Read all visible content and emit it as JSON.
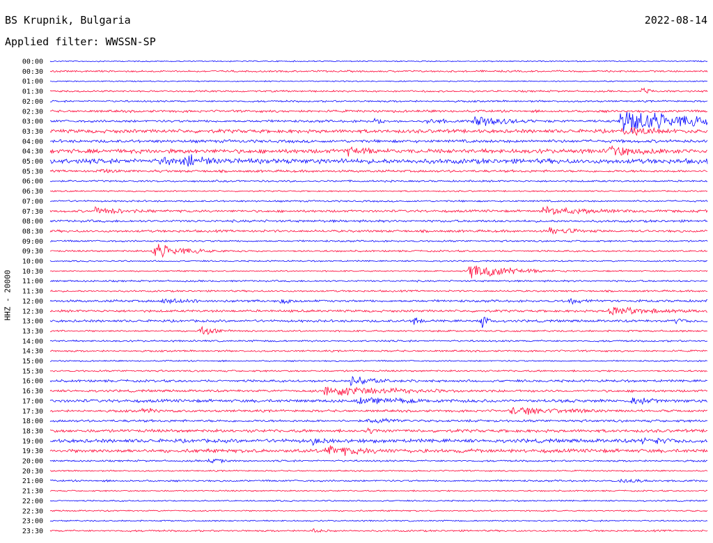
{
  "header": {
    "station": "BS Krupnik, Bulgaria",
    "date": "2022-08-14",
    "filter": "Applied filter: WWSSN-SP"
  },
  "chart_data": {
    "type": "line",
    "title": "BS Krupnik, Bulgaria",
    "ylabel": "HHZ - 20000",
    "colors": {
      "even_row": "#0000ff",
      "odd_row": "#ff0033"
    },
    "rows": [
      "00:00",
      "00:30",
      "01:00",
      "01:30",
      "02:00",
      "02:30",
      "03:00",
      "03:30",
      "04:00",
      "04:30",
      "05:00",
      "05:30",
      "06:00",
      "06:30",
      "07:00",
      "07:30",
      "08:00",
      "08:30",
      "09:00",
      "09:30",
      "10:00",
      "10:30",
      "11:00",
      "11:30",
      "12:00",
      "12:30",
      "13:00",
      "13:30",
      "14:00",
      "14:30",
      "15:00",
      "15:30",
      "16:00",
      "16:30",
      "17:00",
      "17:30",
      "18:00",
      "18:30",
      "19:00",
      "19:30",
      "20:00",
      "20:30",
      "21:00",
      "21:30",
      "22:00",
      "22:30",
      "23:00",
      "23:30"
    ],
    "row_minutes": 30,
    "noise": [
      1,
      1.5,
      1,
      1.5,
      1.5,
      2,
      2,
      3,
      2.5,
      3.5,
      4,
      2,
      1.5,
      1.2,
      1.5,
      2,
      2,
      2,
      1.5,
      1.5,
      1.2,
      1.2,
      1.5,
      1.5,
      2,
      2,
      2,
      1.5,
      1.5,
      1.5,
      1.2,
      1.5,
      2,
      2,
      2.5,
      2,
      2,
      2.5,
      3,
      3,
      1.5,
      1.2,
      1.5,
      1.2,
      1.2,
      1.2,
      1.2,
      1.5
    ],
    "events": [
      {
        "row": 3,
        "minute": 27,
        "amp": 7,
        "dur": 0.5
      },
      {
        "row": 6,
        "minute": 14.8,
        "amp": 7,
        "dur": 0.5
      },
      {
        "row": 6,
        "minute": 17.2,
        "amp": 7,
        "dur": 1
      },
      {
        "row": 6,
        "minute": 19.3,
        "amp": 10,
        "dur": 2
      },
      {
        "row": 6,
        "minute": 26,
        "amp": 22,
        "dur": 3.5
      },
      {
        "row": 7,
        "minute": 26,
        "amp": 8,
        "dur": 3
      },
      {
        "row": 9,
        "minute": 13.5,
        "amp": 10,
        "dur": 1.5
      },
      {
        "row": 9,
        "minute": 25.5,
        "amp": 9,
        "dur": 3
      },
      {
        "row": 10,
        "minute": 5,
        "amp": 9,
        "dur": 3
      },
      {
        "row": 10,
        "minute": 6.3,
        "amp": 15,
        "dur": 1
      },
      {
        "row": 11,
        "minute": 2.3,
        "amp": 5,
        "dur": 1
      },
      {
        "row": 15,
        "minute": 2,
        "amp": 7,
        "dur": 2
      },
      {
        "row": 15,
        "minute": 22.5,
        "amp": 8,
        "dur": 3
      },
      {
        "row": 17,
        "minute": 22.8,
        "amp": 7,
        "dur": 1.5
      },
      {
        "row": 19,
        "minute": 4.7,
        "amp": 14,
        "dur": 1.5
      },
      {
        "row": 21,
        "minute": 19.1,
        "amp": 14,
        "dur": 2
      },
      {
        "row": 24,
        "minute": 5,
        "amp": 6,
        "dur": 2
      },
      {
        "row": 24,
        "minute": 10.5,
        "amp": 5,
        "dur": 1
      },
      {
        "row": 24,
        "minute": 23.5,
        "amp": 6,
        "dur": 1.5
      },
      {
        "row": 25,
        "minute": 25.5,
        "amp": 8,
        "dur": 3
      },
      {
        "row": 26,
        "minute": 16.6,
        "amp": 12,
        "dur": 0.3
      },
      {
        "row": 26,
        "minute": 19.7,
        "amp": 12,
        "dur": 0.3
      },
      {
        "row": 26,
        "minute": 28.5,
        "amp": 5,
        "dur": 1
      },
      {
        "row": 27,
        "minute": 6.8,
        "amp": 8,
        "dur": 1
      },
      {
        "row": 32,
        "minute": 13.7,
        "amp": 9,
        "dur": 1.5
      },
      {
        "row": 33,
        "minute": 12.5,
        "amp": 10,
        "dur": 4
      },
      {
        "row": 34,
        "minute": 14,
        "amp": 6,
        "dur": 5
      },
      {
        "row": 34,
        "minute": 26.5,
        "amp": 7,
        "dur": 1.5
      },
      {
        "row": 35,
        "minute": 21,
        "amp": 8,
        "dur": 3
      },
      {
        "row": 35,
        "minute": 4.2,
        "amp": 6,
        "dur": 1
      },
      {
        "row": 36,
        "minute": 14.5,
        "amp": 6,
        "dur": 2
      },
      {
        "row": 37,
        "minute": 14.5,
        "amp": 6,
        "dur": 1
      },
      {
        "row": 38,
        "minute": 12,
        "amp": 7,
        "dur": 1
      },
      {
        "row": 38,
        "minute": 27,
        "amp": 6,
        "dur": 3
      },
      {
        "row": 39,
        "minute": 12.5,
        "amp": 10,
        "dur": 3
      },
      {
        "row": 40,
        "minute": 7.2,
        "amp": 5,
        "dur": 1
      },
      {
        "row": 42,
        "minute": 26,
        "amp": 4,
        "dur": 2
      },
      {
        "row": 47,
        "minute": 12,
        "amp": 6,
        "dur": 0.5
      }
    ]
  }
}
